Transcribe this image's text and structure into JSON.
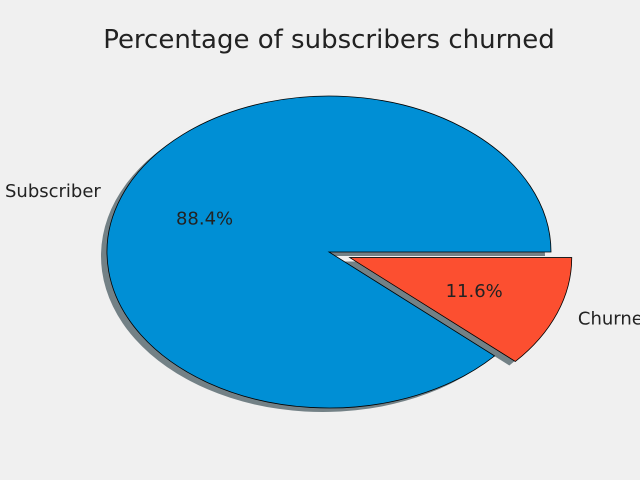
{
  "chart_data": {
    "type": "pie",
    "title": "Percentage of subscribers churned",
    "categories": [
      "Subscriber",
      "Churned"
    ],
    "values": [
      88.4,
      11.6
    ],
    "value_labels": [
      "88.4%",
      "11.6%"
    ],
    "colors": [
      "#008fd5",
      "#fc4f30"
    ],
    "explode": [
      0,
      0.1
    ],
    "shadow": true,
    "start_angle": 0,
    "direction": "counterclockwise"
  },
  "style": {
    "background": "#f0f0f0",
    "edge_color": "#000000",
    "shadow_color": "#5d6d73"
  }
}
